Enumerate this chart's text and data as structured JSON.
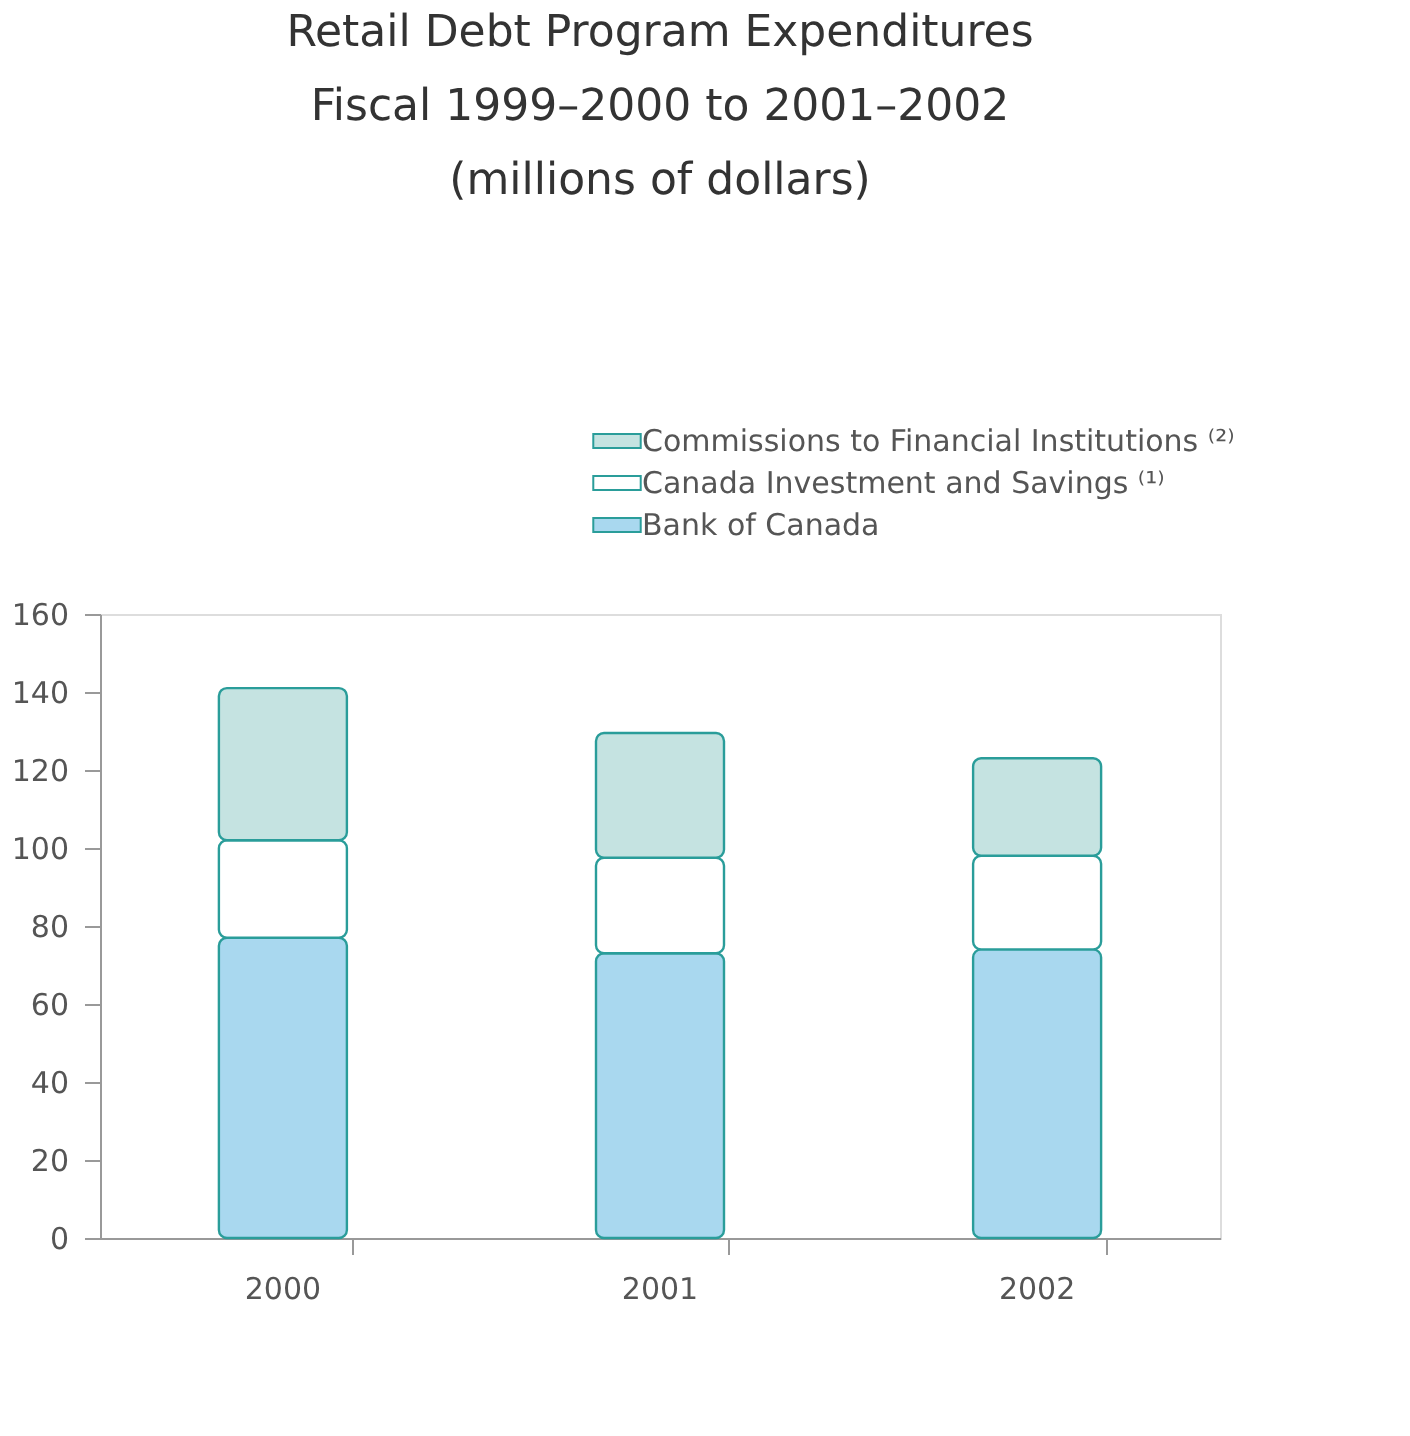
{
  "chart_data": {
    "type": "bar",
    "title": "Retail Debt Program Expenditures\nFiscal 1999–2000 to 2001–2002\n(millions of dollars)",
    "categories": [
      "2000",
      "2001",
      "2002"
    ],
    "stacked": true,
    "series": [
      {
        "name": "Bank of Canada",
        "color": "#a9d8ef",
        "values": [
          77,
          73,
          74
        ]
      },
      {
        "name": "Canada Investment and Savings ⁽¹⁾",
        "color": "#ffffff",
        "values": [
          25,
          24.5,
          24
        ]
      },
      {
        "name": "Commissions to Financial Institutions ⁽²⁾",
        "color": "#c5e3e1",
        "values": [
          39,
          32,
          25
        ]
      }
    ],
    "ylim": [
      0,
      160
    ],
    "yticks": [
      0,
      20,
      40,
      60,
      80,
      100,
      120,
      140,
      160
    ],
    "grid": false,
    "legend": "top right"
  }
}
